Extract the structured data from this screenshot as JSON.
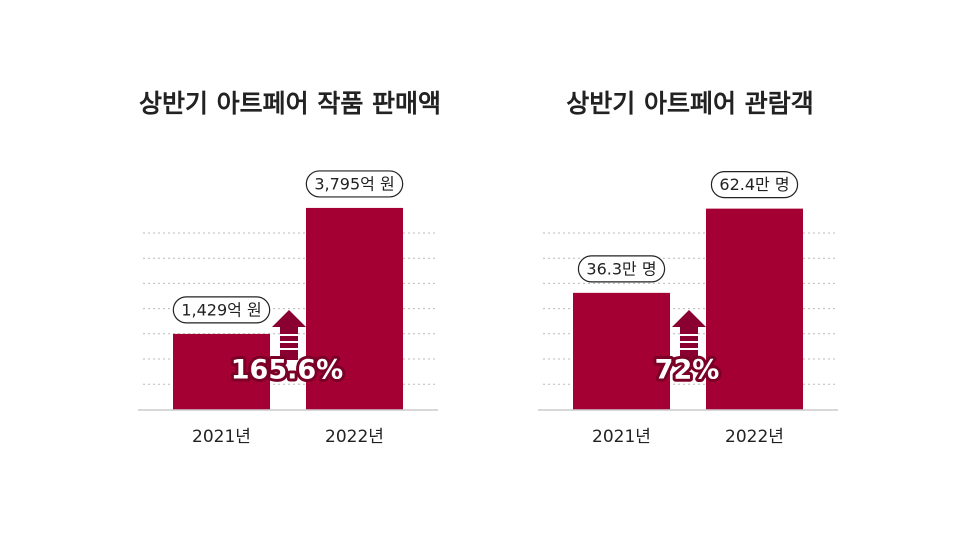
{
  "chart_data": [
    {
      "type": "bar",
      "title": "상반기 아트페어 작품 판매액",
      "categories": [
        "2021년",
        "2022년"
      ],
      "values": [
        1429,
        3795
      ],
      "value_labels": [
        "1,429억 원",
        "3,795억 원"
      ],
      "color": "#a50034",
      "ylim": [
        0,
        4000
      ],
      "annotation": "165.6%"
    },
    {
      "type": "bar",
      "title": "상반기 아트페어 관람객",
      "categories": [
        "2021년",
        "2022년"
      ],
      "values": [
        36.3,
        62.4
      ],
      "value_labels": [
        "36.3만 명",
        "62.4만 명"
      ],
      "color": "#a50034",
      "ylim": [
        0,
        66
      ],
      "annotation": "72%"
    }
  ]
}
